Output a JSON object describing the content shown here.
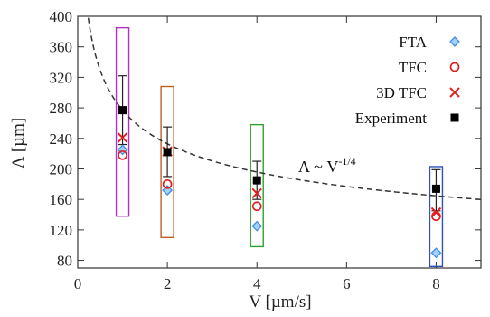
{
  "chart_data": {
    "type": "scatter",
    "xlabel": "V [µm/s]",
    "ylabel": "Λ [µm]",
    "xlim": [
      0,
      9
    ],
    "ylim": [
      70,
      400
    ],
    "x_ticks": [
      "0",
      "2",
      "4",
      "6",
      "8"
    ],
    "y_ticks": [
      "80",
      "120",
      "160",
      "200",
      "240",
      "280",
      "320",
      "360",
      "400"
    ],
    "legend_position": "top-right",
    "series": [
      {
        "name": "FTA",
        "marker": "diamond",
        "color": "#3a8fe6",
        "points": [
          [
            1,
            225
          ],
          [
            2,
            172
          ],
          [
            4,
            125
          ],
          [
            8,
            90
          ]
        ]
      },
      {
        "name": "TFC",
        "marker": "circle",
        "color": "#e02020",
        "points": [
          [
            1,
            218
          ],
          [
            2,
            180
          ],
          [
            4,
            151
          ],
          [
            8,
            138
          ]
        ]
      },
      {
        "name": "3D TFC",
        "marker": "x",
        "color": "#e02020",
        "points": [
          [
            1,
            241
          ],
          [
            2,
            223
          ],
          [
            4,
            168
          ],
          [
            8,
            143
          ]
        ]
      },
      {
        "name": "Experiment",
        "marker": "square",
        "color": "#000000",
        "points": [
          [
            1,
            277
          ],
          [
            2,
            222
          ],
          [
            4,
            185
          ],
          [
            8,
            174
          ]
        ],
        "error": [
          [
            1,
            232,
            322
          ],
          [
            2,
            190,
            255
          ],
          [
            4,
            160,
            210
          ],
          [
            8,
            145,
            199
          ]
        ]
      }
    ],
    "boxes": [
      {
        "x": 1,
        "ymin": 138,
        "ymax": 385,
        "color": "#b030c0"
      },
      {
        "x": 2,
        "ymin": 110,
        "ymax": 308,
        "color": "#c06020"
      },
      {
        "x": 4,
        "ymin": 98,
        "ymax": 258,
        "color": "#30a030"
      },
      {
        "x": 8,
        "ymin": 72,
        "ymax": 203,
        "color": "#3050c0"
      }
    ],
    "fit_curve": {
      "style": "dashed",
      "exponent": -0.25
    },
    "annotation": {
      "text": "Λ ~ V",
      "superscript": "-1/4"
    }
  }
}
